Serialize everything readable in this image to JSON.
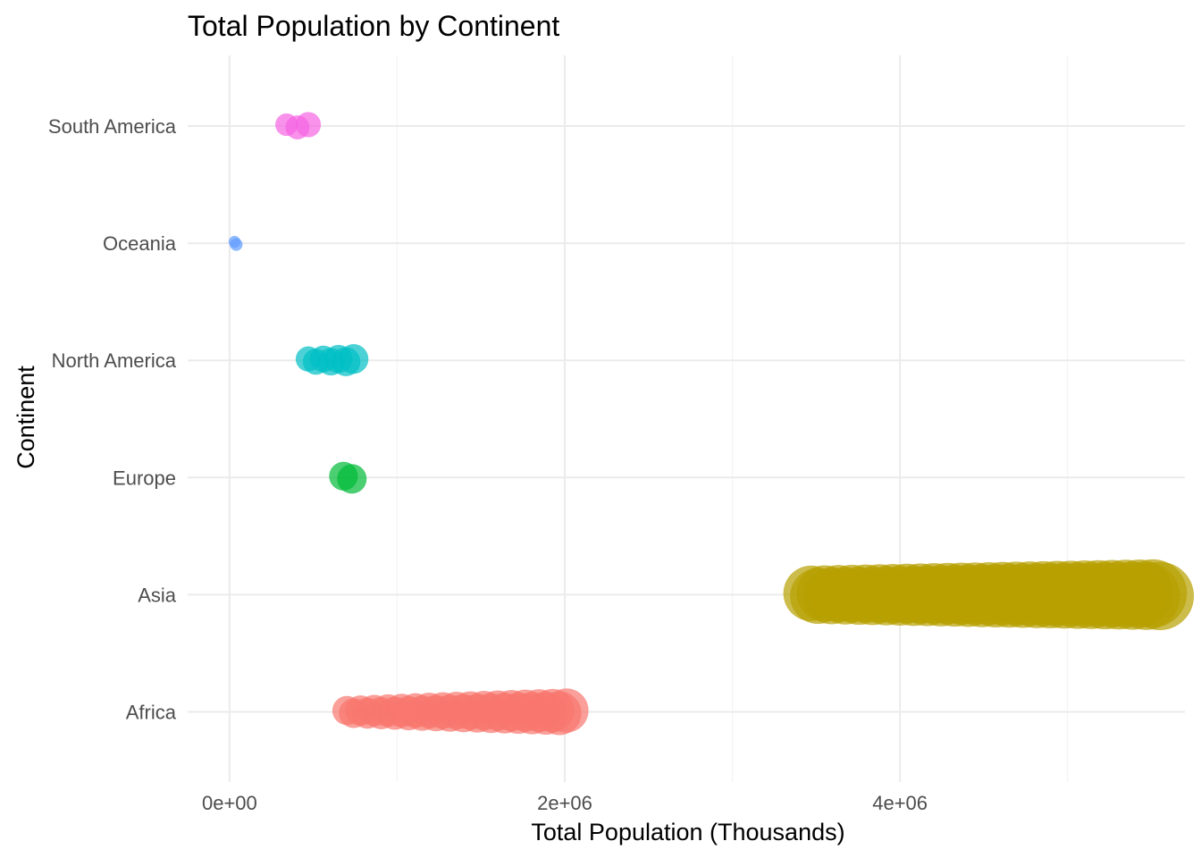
{
  "chart_data": {
    "type": "scatter",
    "title": "Total Population by Continent",
    "xlabel": "Total Population (Thousands)",
    "ylabel": "Continent",
    "xlim": [
      -250000,
      5700000
    ],
    "x_ticks": [
      {
        "value": 0,
        "label": "0e+00"
      },
      {
        "value": 2000000,
        "label": "2e+06"
      },
      {
        "value": 4000000,
        "label": "4e+06"
      }
    ],
    "x_minor_ticks": [
      1000000,
      3000000,
      5000000
    ],
    "categories": [
      "Africa",
      "Asia",
      "Europe",
      "North America",
      "Oceania",
      "South America"
    ],
    "grid": true,
    "legend": "none",
    "series": [
      {
        "name": "Africa",
        "color": "#F8766D",
        "x_min": 700000,
        "x_max": 2010000
      },
      {
        "name": "Asia",
        "color": "#B79F00",
        "x_min": 3470000,
        "x_max": 5550000
      },
      {
        "name": "Europe",
        "color": "#00BA38",
        "x_min": 680000,
        "x_max": 730000
      },
      {
        "name": "North America",
        "color": "#00BFC4",
        "x_min": 470000,
        "x_max": 740000
      },
      {
        "name": "Oceania",
        "color": "#619CFF",
        "x_min": 30000,
        "x_max": 40000
      },
      {
        "name": "South America",
        "color": "#F564E3",
        "x_min": 340000,
        "x_max": 470000
      }
    ]
  }
}
